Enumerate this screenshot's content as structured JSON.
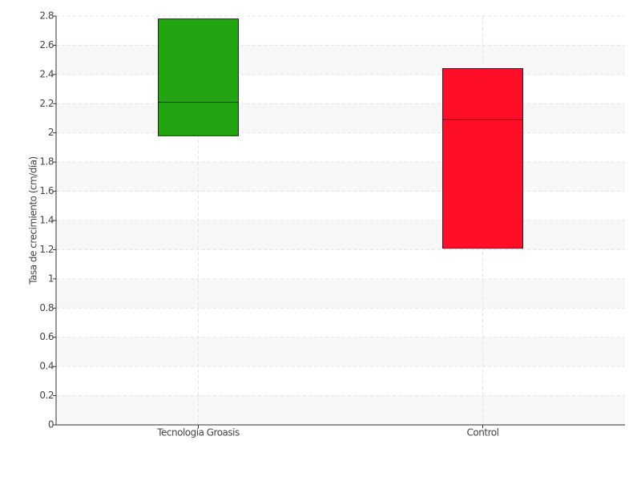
{
  "chart_data": {
    "type": "box",
    "y_label": "Tasa de crecimiento (cm/día)",
    "categories": [
      "Tecnología Groasis",
      "Control"
    ],
    "low": [
      1.98,
      1.21
    ],
    "median": [
      2.21,
      2.09
    ],
    "high": [
      2.78,
      2.44
    ],
    "colors": [
      "#22a511",
      "#ff0e2a"
    ],
    "ylim": [
      0,
      2.8
    ],
    "yticks": [
      0,
      0.2,
      0.4,
      0.6,
      0.8,
      1,
      1.2,
      1.4,
      1.6,
      1.8,
      2,
      2.2,
      2.4,
      2.6,
      2.8
    ],
    "grid": true
  }
}
